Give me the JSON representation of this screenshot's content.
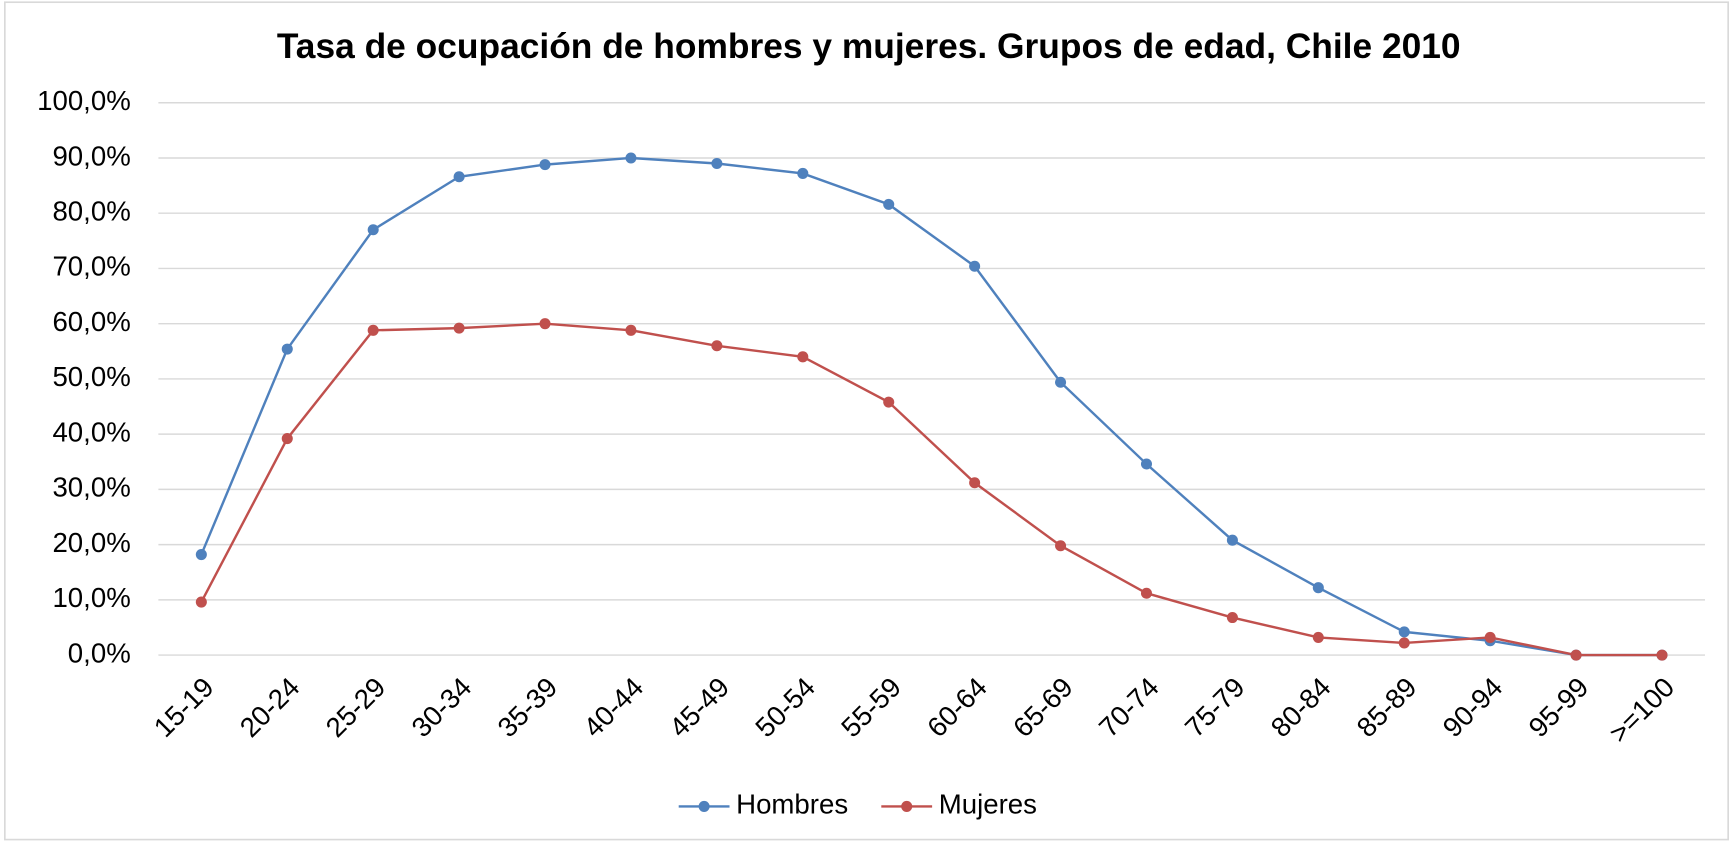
{
  "chart_data": {
    "type": "line",
    "title": "Tasa de ocupación de hombres y mujeres. Grupos de edad, Chile 2010",
    "categories": [
      "15-19",
      "20-24",
      "25-29",
      "30-34",
      "35-39",
      "40-44",
      "45-49",
      "50-54",
      "55-59",
      "60-64",
      "65-69",
      "70-74",
      "75-79",
      "80-84",
      "85-89",
      "90-94",
      "95-99",
      ">=100"
    ],
    "series": [
      {
        "name": "Hombres",
        "color": "#4f81bd",
        "values": [
          18.2,
          55.4,
          77.0,
          86.6,
          88.8,
          90.0,
          89.0,
          87.2,
          81.6,
          70.4,
          49.4,
          34.6,
          20.8,
          12.2,
          4.2,
          2.6,
          0,
          0
        ]
      },
      {
        "name": "Mujeres",
        "color": "#c0504d",
        "values": [
          9.6,
          39.2,
          58.8,
          59.2,
          60.0,
          58.8,
          56.0,
          54.0,
          45.8,
          31.2,
          19.8,
          11.2,
          6.8,
          3.2,
          2.2,
          3.2,
          0,
          0
        ]
      }
    ],
    "ylim": [
      0,
      100
    ],
    "yticks": [
      {
        "value": 0,
        "label": "0,0%"
      },
      {
        "value": 10,
        "label": "10,0%"
      },
      {
        "value": 20,
        "label": "20,0%"
      },
      {
        "value": 30,
        "label": "30,0%"
      },
      {
        "value": 40,
        "label": "40,0%"
      },
      {
        "value": 50,
        "label": "50,0%"
      },
      {
        "value": 60,
        "label": "60,0%"
      },
      {
        "value": 70,
        "label": "70,0%"
      },
      {
        "value": 80,
        "label": "80,0%"
      },
      {
        "value": 90,
        "label": "90,0%"
      },
      {
        "value": 100,
        "label": "100,0%"
      }
    ],
    "grid": true,
    "legend": "bottom"
  }
}
